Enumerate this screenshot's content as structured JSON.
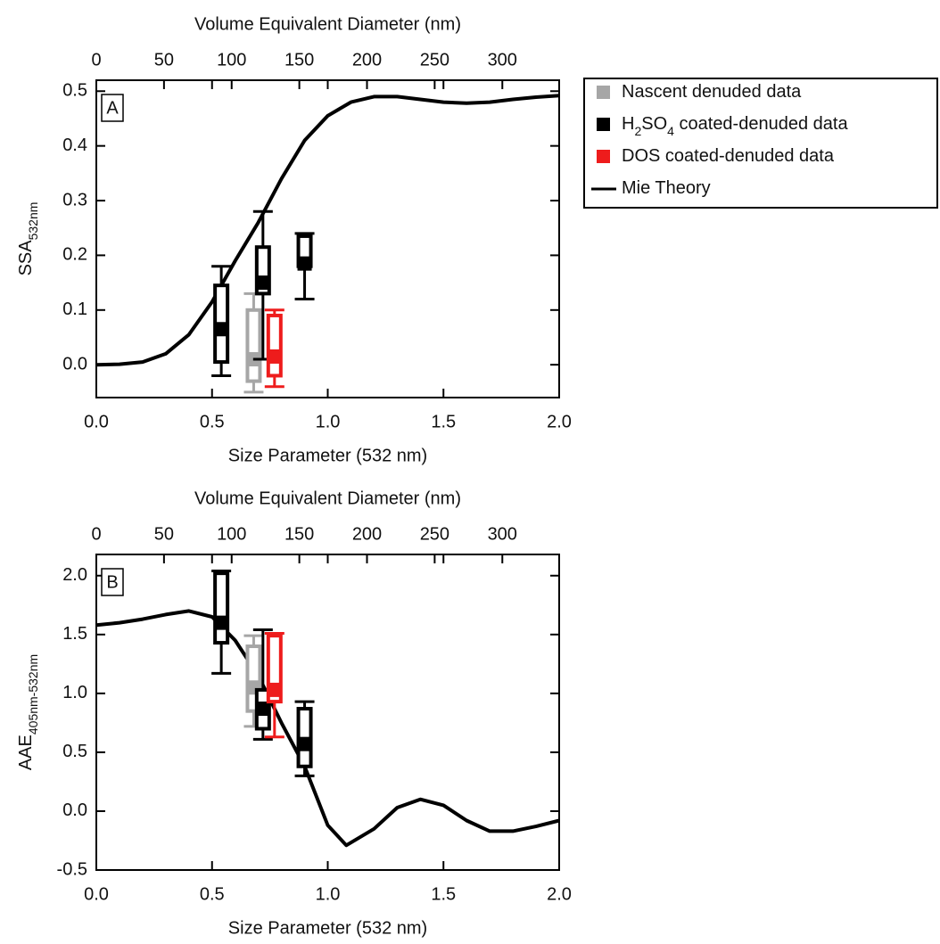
{
  "chart_data": [
    {
      "type": "box",
      "panel_label": "A",
      "xlabel": "Size Parameter (532 nm)",
      "x2label": "Volume Equivalent Diameter (nm)",
      "ylabel": "SSA",
      "ylabel_sub": "532nm",
      "xlim": [
        0,
        2
      ],
      "xticks": [
        {
          "value": 0,
          "label": "0.0"
        },
        0.5,
        {
          "value": 1,
          "label": "1.0"
        },
        1.5,
        {
          "value": 2,
          "label": "2.0"
        }
      ],
      "x2lim": [
        0,
        342
      ],
      "x2ticks": [
        0,
        50,
        100,
        150,
        200,
        250,
        300
      ],
      "ylim": [
        -0.06,
        0.52
      ],
      "yticks": [
        {
          "value": 0,
          "label": "0.0"
        },
        0.1,
        0.2,
        0.3,
        0.4,
        0.5
      ],
      "legend": "outside-right",
      "series": [
        {
          "name": "Nascent denuded data",
          "color": "#a6a6a6",
          "type": "box",
          "x": [
            0.68
          ],
          "whisker_low": [
            -0.05
          ],
          "q1": [
            -0.03
          ],
          "median": [
            0.01
          ],
          "q3": [
            0.1
          ],
          "whisker_high": [
            0.13
          ]
        },
        {
          "name": "H2SO4 coated-denuded data",
          "color": "#000000",
          "type": "box",
          "x": [
            0.54,
            0.72,
            0.9
          ],
          "whisker_low": [
            -0.02,
            0.01,
            0.12
          ],
          "q1": [
            0.005,
            0.13,
            0.18
          ],
          "median": [
            0.065,
            0.15,
            0.185
          ],
          "q3": [
            0.145,
            0.215,
            0.235
          ],
          "whisker_high": [
            0.18,
            0.28,
            0.24
          ]
        },
        {
          "name": "DOS coated-denuded data",
          "color": "#ee1c1c",
          "type": "box",
          "x": [
            0.77
          ],
          "whisker_low": [
            -0.04
          ],
          "q1": [
            -0.02
          ],
          "median": [
            0.015
          ],
          "q3": [
            0.09
          ],
          "whisker_high": [
            0.1
          ]
        },
        {
          "name": "Mie Theory",
          "color": "#000000",
          "type": "line",
          "x": [
            0,
            0.1,
            0.2,
            0.3,
            0.4,
            0.5,
            0.6,
            0.7,
            0.8,
            0.9,
            1.0,
            1.1,
            1.2,
            1.3,
            1.4,
            1.5,
            1.6,
            1.7,
            1.8,
            1.9,
            2.0
          ],
          "values": [
            0,
            0.001,
            0.005,
            0.02,
            0.055,
            0.115,
            0.19,
            0.26,
            0.34,
            0.41,
            0.455,
            0.48,
            0.49,
            0.49,
            0.485,
            0.48,
            0.478,
            0.48,
            0.485,
            0.489,
            0.492
          ]
        }
      ]
    },
    {
      "type": "box",
      "panel_label": "B",
      "xlabel": "Size Parameter (532 nm)",
      "x2label": "Volume Equivalent Diameter (nm)",
      "ylabel": "AAE",
      "ylabel_sub": "405nm-532nm",
      "xlim": [
        0,
        2
      ],
      "xticks": [
        {
          "value": 0,
          "label": "0.0"
        },
        0.5,
        {
          "value": 1,
          "label": "1.0"
        },
        1.5,
        {
          "value": 2,
          "label": "2.0"
        }
      ],
      "x2lim": [
        0,
        342
      ],
      "x2ticks": [
        0,
        50,
        100,
        150,
        200,
        250,
        300
      ],
      "ylim": [
        -0.5,
        2.18
      ],
      "yticks": [
        -0.5,
        {
          "value": 0,
          "label": "0.0"
        },
        0.5,
        {
          "value": 1,
          "label": "1.0"
        },
        1.5,
        {
          "value": 2,
          "label": "2.0"
        }
      ],
      "series": [
        {
          "color": "#a6a6a6",
          "type": "box",
          "x": [
            0.68
          ],
          "whisker_low": [
            0.72
          ],
          "q1": [
            0.85
          ],
          "median": [
            1.05
          ],
          "q3": [
            1.4
          ],
          "whisker_high": [
            1.49
          ]
        },
        {
          "color": "#000000",
          "type": "box",
          "x": [
            0.54,
            0.72,
            0.9
          ],
          "whisker_low": [
            1.17,
            0.61,
            0.3
          ],
          "q1": [
            1.43,
            0.7,
            0.38
          ],
          "median": [
            1.6,
            0.87,
            0.57
          ],
          "q3": [
            2.02,
            1.03,
            0.87
          ],
          "whisker_high": [
            2.04,
            1.54,
            0.93
          ]
        },
        {
          "color": "#ee1c1c",
          "type": "box",
          "x": [
            0.77
          ],
          "whisker_low": [
            0.63
          ],
          "q1": [
            0.93
          ],
          "median": [
            1.03
          ],
          "q3": [
            1.49
          ],
          "whisker_high": [
            1.51
          ]
        },
        {
          "color": "#000000",
          "type": "line",
          "x": [
            0,
            0.1,
            0.2,
            0.3,
            0.4,
            0.5,
            0.6,
            0.7,
            0.8,
            0.9,
            1.0,
            1.08,
            1.2,
            1.3,
            1.4,
            1.5,
            1.6,
            1.7,
            1.8,
            1.9,
            2.0
          ],
          "values": [
            1.58,
            1.6,
            1.63,
            1.67,
            1.7,
            1.65,
            1.45,
            1.15,
            0.75,
            0.38,
            -0.12,
            -0.29,
            -0.15,
            0.03,
            0.1,
            0.05,
            -0.08,
            -0.17,
            -0.17,
            -0.13,
            -0.08
          ]
        }
      ]
    }
  ]
}
